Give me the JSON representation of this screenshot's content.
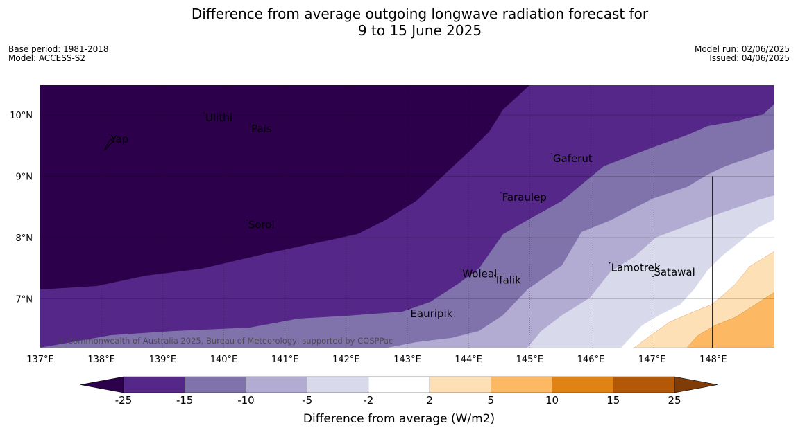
{
  "title": {
    "line1": "Difference from average outgoing longwave radiation forecast for",
    "line2": "9 to 15 June 2025"
  },
  "meta_left": {
    "base_period": "Base period: 1981-2018",
    "model": "Model: ACCESS-S2"
  },
  "meta_right": {
    "model_run": "Model run: 02/06/2025",
    "issued": "Issued: 04/06/2025"
  },
  "map": {
    "lon_range": [
      137,
      149
    ],
    "lat_range": [
      6.2,
      10.5
    ],
    "lon_ticks": [
      "137°E",
      "138°E",
      "139°E",
      "140°E",
      "141°E",
      "142°E",
      "143°E",
      "144°E",
      "145°E",
      "146°E",
      "147°E",
      "148°E"
    ],
    "lat_ticks": [
      "10°N",
      "9°N",
      "8°N",
      "7°N"
    ],
    "places": [
      {
        "name": "Yap",
        "lon": 138.15,
        "lat": 9.55
      },
      {
        "name": "Ulithi",
        "lon": 139.7,
        "lat": 9.9
      },
      {
        "name": "Pais",
        "lon": 140.45,
        "lat": 9.72
      },
      {
        "name": "Sorol",
        "lon": 140.4,
        "lat": 8.15
      },
      {
        "name": "Gaferut",
        "lon": 145.38,
        "lat": 9.23
      },
      {
        "name": "Faraulep",
        "lon": 144.55,
        "lat": 8.6
      },
      {
        "name": "Woleai",
        "lon": 143.9,
        "lat": 7.35
      },
      {
        "name": "Ifalik",
        "lon": 144.45,
        "lat": 7.25
      },
      {
        "name": "Lamotrek",
        "lon": 146.33,
        "lat": 7.45
      },
      {
        "name": "Satawal",
        "lon": 147.03,
        "lat": 7.38
      },
      {
        "name": "Eauripik",
        "lon": 143.05,
        "lat": 6.7
      }
    ],
    "copyright": "© Commonwealth of Australia 2025, Bureau of Meteorology, supported by COSPPac"
  },
  "colorbar": {
    "label": "Difference from average (W/m2)",
    "ticks": [
      "-25",
      "-15",
      "-10",
      "-5",
      "-2",
      "2",
      "5",
      "10",
      "15",
      "25"
    ],
    "colors": [
      "#2d004b",
      "#542788",
      "#8073ac",
      "#b2abd2",
      "#d8daeb",
      "#ffffff",
      "#fee0b6",
      "#fdb863",
      "#e08214",
      "#b35806",
      "#7f3b08"
    ]
  }
}
